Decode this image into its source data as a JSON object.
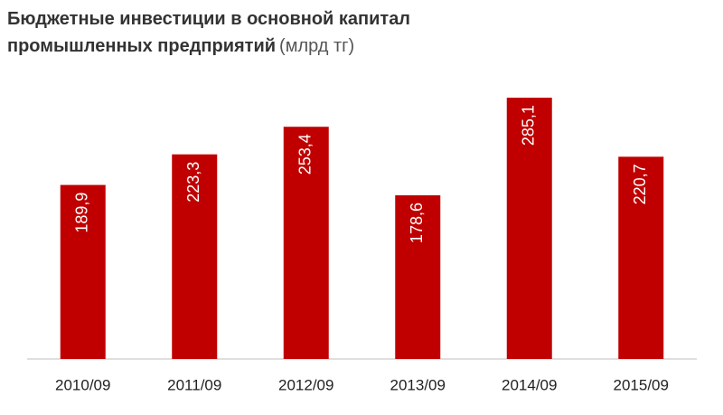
{
  "chart_data": {
    "type": "bar",
    "title": "Бюджетные инвестиции в основной капитал промышленных предприятий",
    "subtitle": "(млрд тг)",
    "categories": [
      "2010/09",
      "2011/09",
      "2012/09",
      "2013/09",
      "2014/09",
      "2015/09"
    ],
    "values": [
      189.9,
      223.3,
      253.4,
      178.6,
      285.1,
      220.7
    ],
    "value_labels": [
      "189,9",
      "223,3",
      "253,4",
      "178,6",
      "285,1",
      "220,7"
    ],
    "color": "#c00000",
    "ylim": [
      0,
      300
    ]
  }
}
